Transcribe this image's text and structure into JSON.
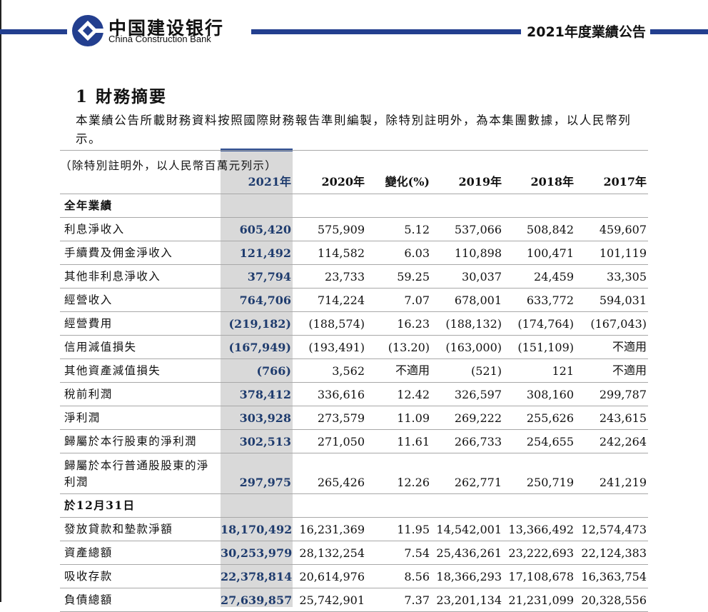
{
  "header": {
    "brand_cn": "中国建设银行",
    "brand_en": "China Construction Bank",
    "report_title": "2021年度業績公告",
    "brand_color": "#233f8f"
  },
  "section": {
    "title": "1 財務摘要",
    "intro": "本業績公告所載財務資料按照國際財務報告準則編製，除特別註明外，為本集團數據，以人民幣列示。"
  },
  "table": {
    "unit_note": "（除特別註明外，以人民幣百萬元列示）",
    "columns": [
      "2021年",
      "2020年",
      "變化(%)",
      "2019年",
      "2018年",
      "2017年"
    ],
    "sections": [
      {
        "title": "全年業績",
        "rows": [
          {
            "label": "利息淨收入",
            "values": [
              "605,420",
              "575,909",
              "5.12",
              "537,066",
              "508,842",
              "459,607"
            ]
          },
          {
            "label": "手續費及佣金淨收入",
            "values": [
              "121,492",
              "114,582",
              "6.03",
              "110,898",
              "100,471",
              "101,119"
            ]
          },
          {
            "label": "其他非利息淨收入",
            "values": [
              "37,794",
              "23,733",
              "59.25",
              "30,037",
              "24,459",
              "33,305"
            ]
          },
          {
            "label": "經營收入",
            "values": [
              "764,706",
              "714,224",
              "7.07",
              "678,001",
              "633,772",
              "594,031"
            ]
          },
          {
            "label": "經營費用",
            "values": [
              "(219,182)",
              "(188,574)",
              "16.23",
              "(188,132)",
              "(174,764)",
              "(167,043)"
            ]
          },
          {
            "label": "信用減值損失",
            "values": [
              "(167,949)",
              "(193,491)",
              "(13.20)",
              "(163,000)",
              "(151,109)",
              "不適用"
            ]
          },
          {
            "label": "其他資產減值損失",
            "values": [
              "(766)",
              "3,562",
              "不適用",
              "(521)",
              "121",
              "不適用"
            ]
          },
          {
            "label": "稅前利潤",
            "values": [
              "378,412",
              "336,616",
              "12.42",
              "326,597",
              "308,160",
              "299,787"
            ]
          },
          {
            "label": "淨利潤",
            "values": [
              "303,928",
              "273,579",
              "11.09",
              "269,222",
              "255,626",
              "243,615"
            ]
          },
          {
            "label": "歸屬於本行股東的淨利潤",
            "values": [
              "302,513",
              "271,050",
              "11.61",
              "266,733",
              "254,655",
              "242,264"
            ]
          },
          {
            "label": "歸屬於本行普通股股東的淨利潤",
            "tall": true,
            "values": [
              "297,975",
              "265,426",
              "12.26",
              "262,771",
              "250,719",
              "241,219"
            ]
          }
        ]
      },
      {
        "title": "於12月31日",
        "rows": [
          {
            "label": "發放貸款和墊款淨額",
            "values": [
              "18,170,492",
              "16,231,369",
              "11.95",
              "14,542,001",
              "13,366,492",
              "12,574,473"
            ]
          },
          {
            "label": "資產總額",
            "values": [
              "30,253,979",
              "28,132,254",
              "7.54",
              "25,436,261",
              "23,222,693",
              "22,124,383"
            ]
          },
          {
            "label": "吸收存款",
            "values": [
              "22,378,814",
              "20,614,976",
              "8.56",
              "18,366,293",
              "17,108,678",
              "16,363,754"
            ]
          },
          {
            "label": "負債總額",
            "values": [
              "27,639,857",
              "25,742,901",
              "7.37",
              "23,201,134",
              "21,231,099",
              "20,328,556"
            ]
          }
        ]
      }
    ]
  }
}
